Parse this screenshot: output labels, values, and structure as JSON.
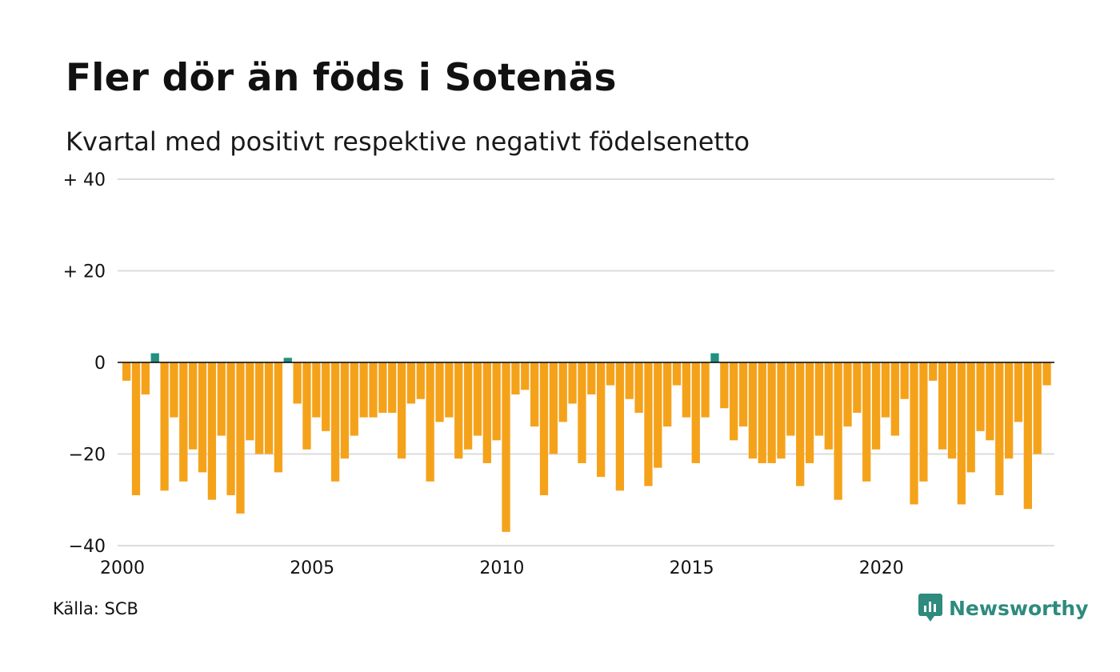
{
  "title": "Fler dör än föds i Sotenäs",
  "subtitle": "Kvartal med positivt respektive negativt födelsenetto",
  "source": "Källa: SCB",
  "brand": "Newsworthy",
  "colors": {
    "positive": "#22917f",
    "negative": "#f5a21b",
    "grid": "#dcdcdc",
    "axis": "#000000",
    "brand": "#2e8b7e"
  },
  "chart_data": {
    "type": "bar",
    "title": "Fler dör än föds i Sotenäs",
    "subtitle": "Kvartal med positivt respektive negativt födelsenetto",
    "ylim": [
      -40,
      40
    ],
    "y_ticks": [
      {
        "value": 40,
        "label": "+ 40"
      },
      {
        "value": 20,
        "label": "+ 20"
      },
      {
        "value": 0,
        "label": "0"
      },
      {
        "value": -20,
        "label": "−20"
      },
      {
        "value": -40,
        "label": "−40"
      }
    ],
    "x_ticks": [
      {
        "value": 2000,
        "label": "2000"
      },
      {
        "value": 2005,
        "label": "2005"
      },
      {
        "value": 2010,
        "label": "2010"
      },
      {
        "value": 2015,
        "label": "2015"
      },
      {
        "value": 2020,
        "label": "2020"
      }
    ],
    "start_year": 2000,
    "grid": true,
    "values": [
      -4,
      -29,
      -7,
      2,
      -28,
      -12,
      -26,
      -19,
      -24,
      -30,
      -16,
      -29,
      -33,
      -17,
      -20,
      -20,
      -24,
      1,
      -9,
      -19,
      -12,
      -15,
      -26,
      -21,
      -16,
      -12,
      -12,
      -11,
      -11,
      -21,
      -9,
      -8,
      -26,
      -13,
      -12,
      -21,
      -19,
      -16,
      -22,
      -17,
      -37,
      -7,
      -6,
      -14,
      -29,
      -20,
      -13,
      -9,
      -22,
      -7,
      -25,
      -5,
      -28,
      -8,
      -11,
      -27,
      -23,
      -14,
      -5,
      -12,
      -22,
      -12,
      2,
      -10,
      -17,
      -14,
      -21,
      -22,
      -22,
      -21,
      -16,
      -27,
      -22,
      -16,
      -19,
      -30,
      -14,
      -11,
      -26,
      -19,
      -12,
      -16,
      -8,
      -31,
      -26,
      -4,
      -19,
      -21,
      -31,
      -24,
      -15,
      -17,
      -29,
      -21,
      -13,
      -32,
      -20,
      -5
    ]
  }
}
